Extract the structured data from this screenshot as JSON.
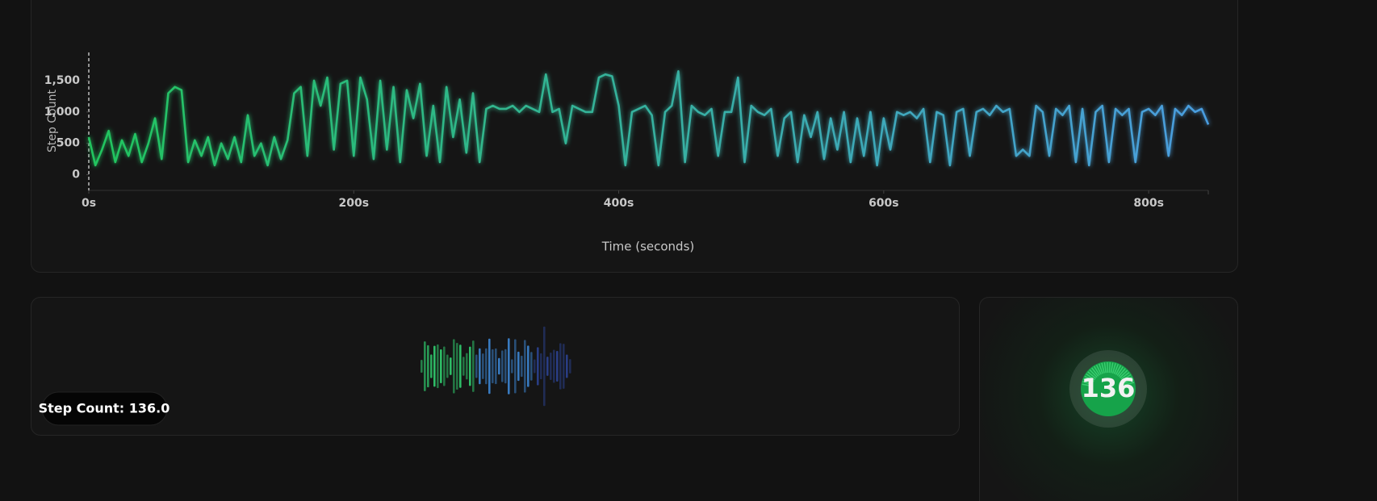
{
  "chart_data": {
    "type": "line",
    "y_label": "Step Count",
    "x_label": "Time (seconds)",
    "x": [
      0,
      5,
      10,
      15,
      20,
      25,
      30,
      35,
      40,
      45,
      50,
      55,
      60,
      65,
      70,
      75,
      80,
      85,
      90,
      95,
      100,
      105,
      110,
      115,
      120,
      125,
      130,
      135,
      140,
      145,
      150,
      155,
      160,
      165,
      170,
      175,
      180,
      185,
      190,
      195,
      200,
      205,
      210,
      215,
      220,
      225,
      230,
      235,
      240,
      245,
      250,
      255,
      260,
      265,
      270,
      275,
      280,
      285,
      290,
      295,
      300,
      305,
      310,
      315,
      320,
      325,
      330,
      335,
      340,
      345,
      350,
      355,
      360,
      365,
      370,
      375,
      380,
      385,
      390,
      395,
      400,
      405,
      410,
      415,
      420,
      425,
      430,
      435,
      440,
      445,
      450,
      455,
      460,
      465,
      470,
      475,
      480,
      485,
      490,
      495,
      500,
      505,
      510,
      515,
      520,
      525,
      530,
      535,
      540,
      545,
      550,
      555,
      560,
      565,
      570,
      575,
      580,
      585,
      590,
      595,
      600,
      605,
      610,
      615,
      620,
      625,
      630,
      635,
      640,
      645,
      650,
      655,
      660,
      665,
      670,
      675,
      680,
      685,
      690,
      695,
      700,
      705,
      710,
      715,
      720,
      725,
      730,
      735,
      740,
      745,
      750,
      755,
      760,
      765,
      770,
      775,
      780,
      785,
      790,
      795,
      800,
      805,
      810,
      815,
      820,
      825,
      830,
      835,
      840,
      845
    ],
    "values": [
      600,
      150,
      400,
      700,
      200,
      550,
      300,
      650,
      200,
      500,
      900,
      250,
      1300,
      1400,
      1350,
      200,
      550,
      300,
      600,
      150,
      500,
      250,
      600,
      200,
      950,
      300,
      500,
      150,
      600,
      250,
      550,
      1300,
      1400,
      300,
      1500,
      1100,
      1550,
      400,
      1450,
      1500,
      300,
      1550,
      1200,
      250,
      1500,
      400,
      1400,
      200,
      1350,
      900,
      1450,
      300,
      1100,
      200,
      1400,
      600,
      1200,
      350,
      1300,
      200,
      1050,
      1100,
      1050,
      1050,
      1100,
      1000,
      1100,
      1050,
      1000,
      1600,
      1000,
      1050,
      500,
      1100,
      1050,
      1000,
      1000,
      1550,
      1600,
      1570,
      1100,
      150,
      1000,
      1050,
      1100,
      950,
      150,
      1000,
      1100,
      1650,
      200,
      1100,
      1000,
      950,
      1050,
      300,
      1000,
      1000,
      1550,
      200,
      1100,
      1000,
      950,
      1050,
      300,
      900,
      1000,
      200,
      950,
      600,
      1000,
      250,
      900,
      400,
      1000,
      200,
      900,
      300,
      1000,
      150,
      900,
      400,
      1000,
      950,
      1000,
      900,
      1050,
      200,
      1000,
      950,
      150,
      1000,
      1050,
      300,
      1000,
      1050,
      950,
      1100,
      1000,
      1050,
      300,
      400,
      300,
      1100,
      1000,
      300,
      1050,
      950,
      1100,
      200,
      1050,
      150,
      1000,
      1100,
      200,
      1050,
      950,
      1050,
      200,
      1000,
      1050,
      950,
      1100,
      300,
      1050,
      950,
      1100,
      1000,
      1050,
      800
    ],
    "gradient": [
      "#22c55e",
      "#4a9de0"
    ],
    "xlim": [
      0,
      845
    ],
    "ylim": [
      -250,
      1950
    ],
    "xticks": [
      {
        "value": 0,
        "label": "0s"
      },
      {
        "value": 200,
        "label": "200s"
      },
      {
        "value": 400,
        "label": "400s"
      },
      {
        "value": 600,
        "label": "600s"
      },
      {
        "value": 800,
        "label": "800s"
      }
    ],
    "yticks": [
      0,
      500,
      {
        "value": 1000,
        "label": "1,000"
      },
      {
        "value": 1500,
        "label": "1,500"
      }
    ],
    "grid": false
  },
  "readout": {
    "label": "Step Count: 136.0"
  },
  "gauge": {
    "value": 136
  }
}
